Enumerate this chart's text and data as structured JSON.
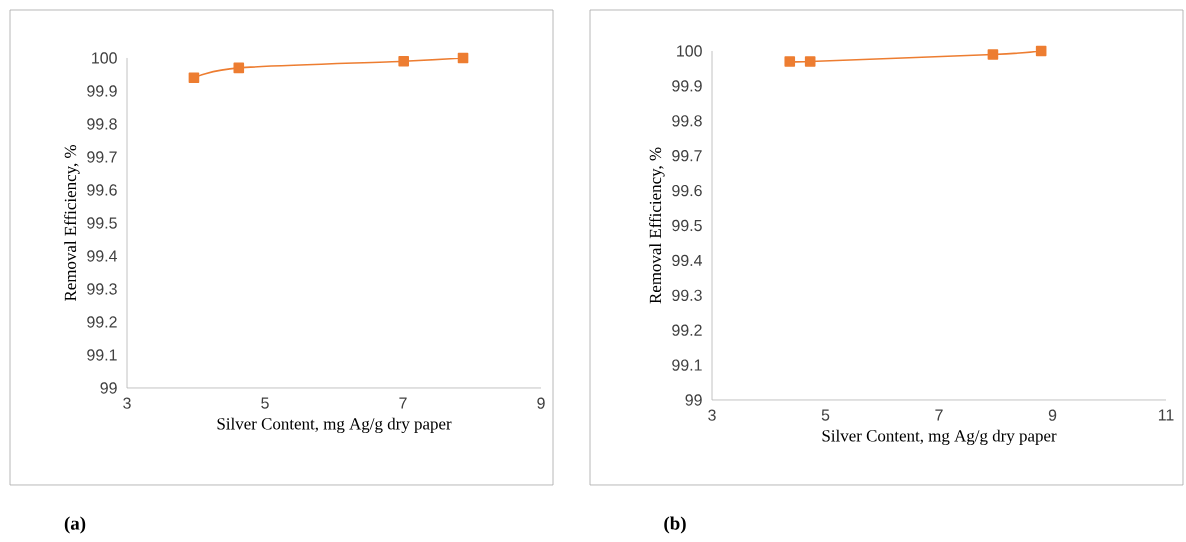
{
  "chart_data": [
    {
      "type": "line",
      "xlabel": "Silver Content, mg Ag/g dry paper",
      "ylabel": "Removal Efficiency, %",
      "annotations": [
        "(a)"
      ],
      "x": [
        3.97,
        4.62,
        7.01,
        7.87
      ],
      "series": [
        {
          "color": "#ed7d31",
          "values": [
            99.94,
            99.97,
            99.99,
            100
          ]
        }
      ],
      "xlim": [
        3,
        9
      ],
      "xticks": [
        3,
        5,
        7,
        9
      ],
      "ylim": [
        99,
        100
      ],
      "yticks": [
        99,
        99.1,
        99.2,
        99.3,
        99.4,
        99.5,
        99.6,
        99.7,
        99.8,
        99.9,
        100
      ],
      "grid": false,
      "marker": "square",
      "line_style": "solid"
    },
    {
      "type": "line",
      "xlabel": "Silver Content, mg Ag/g dry paper",
      "ylabel": "Removal Efficiency, %",
      "annotations": [
        "(b)"
      ],
      "x": [
        4.37,
        4.73,
        7.95,
        8.8
      ],
      "series": [
        {
          "color": "#ed7d31",
          "values": [
            99.97,
            99.97,
            99.99,
            100
          ]
        }
      ],
      "xlim": [
        3,
        11
      ],
      "xticks": [
        3,
        5,
        7,
        9,
        11
      ],
      "ylim": [
        99,
        100
      ],
      "yticks": [
        99,
        99.1,
        99.2,
        99.3,
        99.4,
        99.5,
        99.6,
        99.7,
        99.8,
        99.9,
        100
      ],
      "grid": false,
      "marker": "square",
      "line_style": "solid"
    }
  ]
}
